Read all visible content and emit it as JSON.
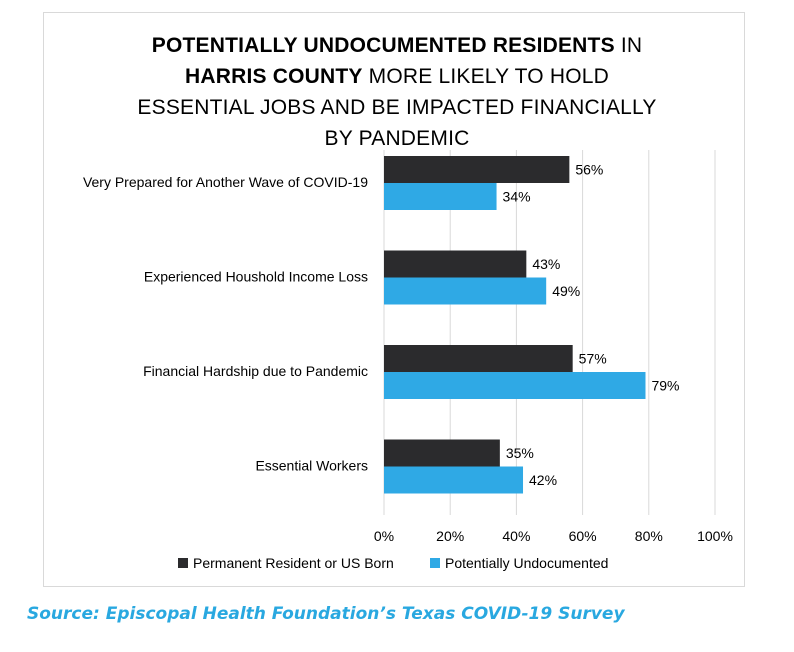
{
  "title": {
    "line1": {
      "b1": "POTENTIALLY UNDOCUMENTED RESIDENTS",
      "n1": " IN"
    },
    "line2": {
      "b1": "HARRIS COUNTY",
      "n1": " MORE LIKELY TO HOLD"
    },
    "line3": "ESSENTIAL JOBS AND BE IMPACTED FINANCIALLY",
    "line4": "BY PANDEMIC"
  },
  "source": "Source: Episcopal Health Foundation’s Texas COVID-19 Survey",
  "colors": {
    "series1": "#2b2b2d",
    "series2": "#2fa9e5",
    "grid": "#d9d9d9"
  },
  "chart_data": {
    "type": "bar",
    "orientation": "horizontal",
    "categories": [
      "Very Prepared for Another Wave of COVID-19",
      "Experienced Houshold Income Loss",
      "Financial Hardship due to Pandemic",
      "Essential Workers"
    ],
    "series": [
      {
        "name": "Permanent Resident or US Born",
        "values": [
          56,
          43,
          57,
          35
        ],
        "labels": [
          "56%",
          "43%",
          "57%",
          "35%"
        ]
      },
      {
        "name": "Potentially Undocumented",
        "values": [
          34,
          49,
          79,
          42
        ],
        "labels": [
          "34%",
          "49%",
          "79%",
          "42%"
        ]
      }
    ],
    "xlim": [
      0,
      100
    ],
    "xticks": [
      "0%",
      "20%",
      "40%",
      "60%",
      "80%",
      "100%"
    ],
    "xtick_values": [
      0,
      20,
      40,
      60,
      80,
      100
    ],
    "grid": true,
    "legend": "bottom"
  }
}
